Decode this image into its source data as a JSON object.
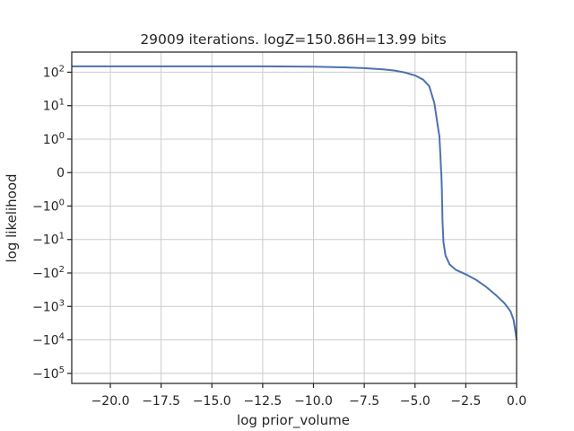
{
  "chart_data": {
    "type": "line",
    "title": "29009 iterations. logZ=150.86H=13.99 bits",
    "xlabel": "log prior_volume",
    "ylabel": "log likelihood",
    "xlim": [
      -21.9,
      0.0
    ],
    "yscale": "symlog",
    "ylim": [
      -200000,
      400
    ],
    "grid": true,
    "color": "#4c72b0",
    "x_ticks": [
      -20.0,
      -17.5,
      -15.0,
      -12.5,
      -10.0,
      -7.5,
      -5.0,
      -2.5,
      0.0
    ],
    "x_tick_labels": [
      "−20.0",
      "−17.5",
      "−15.0",
      "−12.5",
      "−10.0",
      "−7.5",
      "−5.0",
      "−2.5",
      "0.0"
    ],
    "y_ticks": [
      100,
      10,
      1,
      0,
      -1,
      -10,
      -100,
      -1000,
      -10000,
      -100000
    ],
    "y_tick_labels": [
      {
        "base": "10",
        "exp": "2"
      },
      {
        "base": "10",
        "exp": "1"
      },
      {
        "base": "10",
        "exp": "0"
      },
      {
        "base": "0",
        "exp": ""
      },
      {
        "base": "−10",
        "exp": "0"
      },
      {
        "base": "−10",
        "exp": "1"
      },
      {
        "base": "−10",
        "exp": "2"
      },
      {
        "base": "−10",
        "exp": "3"
      },
      {
        "base": "−10",
        "exp": "4"
      },
      {
        "base": "−10",
        "exp": "5"
      }
    ],
    "series": [
      {
        "x": [
          -21.9,
          -20,
          -17.5,
          -15,
          -12.5,
          -10,
          -8.5,
          -7.5,
          -6.5,
          -6.0,
          -5.5,
          -5.0,
          -4.6,
          -4.3,
          -4.05,
          -3.9,
          -3.8,
          -3.75,
          -3.72,
          -3.7,
          -3.68,
          -3.66,
          -3.65,
          -3.63,
          -3.6,
          -3.5,
          -3.3,
          -3.0,
          -2.5,
          -2.0,
          -1.5,
          -1.0,
          -0.6,
          -0.3,
          -0.15,
          -0.05,
          0.0
        ],
        "y": [
          150.5,
          150.4,
          150.2,
          150,
          149.5,
          146,
          140,
          133,
          121,
          112,
          98,
          80,
          60,
          38,
          12,
          3,
          1.2,
          0.5,
          0.1,
          -0.1,
          -0.5,
          -1.2,
          -2.5,
          -5,
          -12,
          -30,
          -55,
          -80,
          -110,
          -160,
          -260,
          -470,
          -800,
          -1400,
          -2500,
          -6000,
          -10000
        ]
      }
    ]
  }
}
